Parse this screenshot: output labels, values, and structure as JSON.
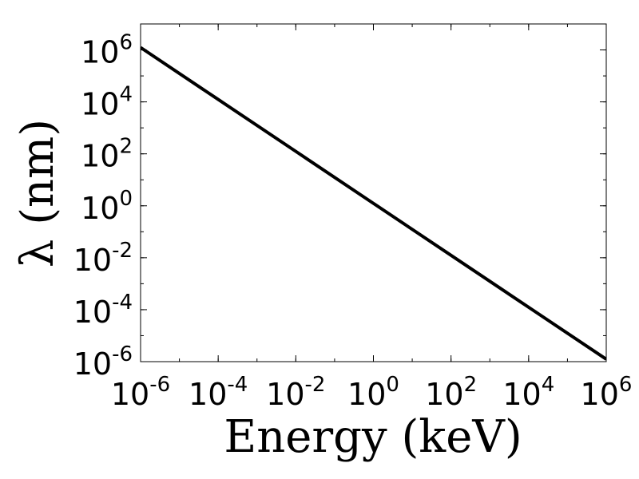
{
  "chart_data": {
    "type": "line",
    "xlabel": "Energy (keV)",
    "ylabel": "λ (nm)",
    "xscale": "log",
    "yscale": "log",
    "xlim": [
      1e-06,
      1000000.0
    ],
    "ylim": [
      1e-06,
      10000000.0
    ],
    "xticks": [
      {
        "base": "10",
        "exp": "-6",
        "value": 1e-06
      },
      {
        "base": "10",
        "exp": "-4",
        "value": 0.0001
      },
      {
        "base": "10",
        "exp": "-2",
        "value": 0.01
      },
      {
        "base": "10",
        "exp": "0",
        "value": 1
      },
      {
        "base": "10",
        "exp": "2",
        "value": 100
      },
      {
        "base": "10",
        "exp": "4",
        "value": 10000
      },
      {
        "base": "10",
        "exp": "6",
        "value": 1000000
      }
    ],
    "yticks": [
      {
        "base": "10",
        "exp": "-6",
        "value": 1e-06
      },
      {
        "base": "10",
        "exp": "-4",
        "value": 0.0001
      },
      {
        "base": "10",
        "exp": "-2",
        "value": 0.01
      },
      {
        "base": "10",
        "exp": "0",
        "value": 1
      },
      {
        "base": "10",
        "exp": "2",
        "value": 100
      },
      {
        "base": "10",
        "exp": "4",
        "value": 10000
      },
      {
        "base": "10",
        "exp": "6",
        "value": 1000000
      }
    ],
    "series": [
      {
        "color": "#000000",
        "x": [
          1e-06,
          0.0001,
          0.01,
          1,
          100,
          10000,
          1000000
        ],
        "y": [
          1239841.98,
          12398.4198,
          123.984198,
          1.23984198,
          0.0123984198,
          0.000123984198,
          1.23984198e-06
        ]
      }
    ],
    "grid": false,
    "legend": "none",
    "colors": {
      "line": "#000000",
      "axes": "#000000",
      "background": "#ffffff"
    }
  }
}
